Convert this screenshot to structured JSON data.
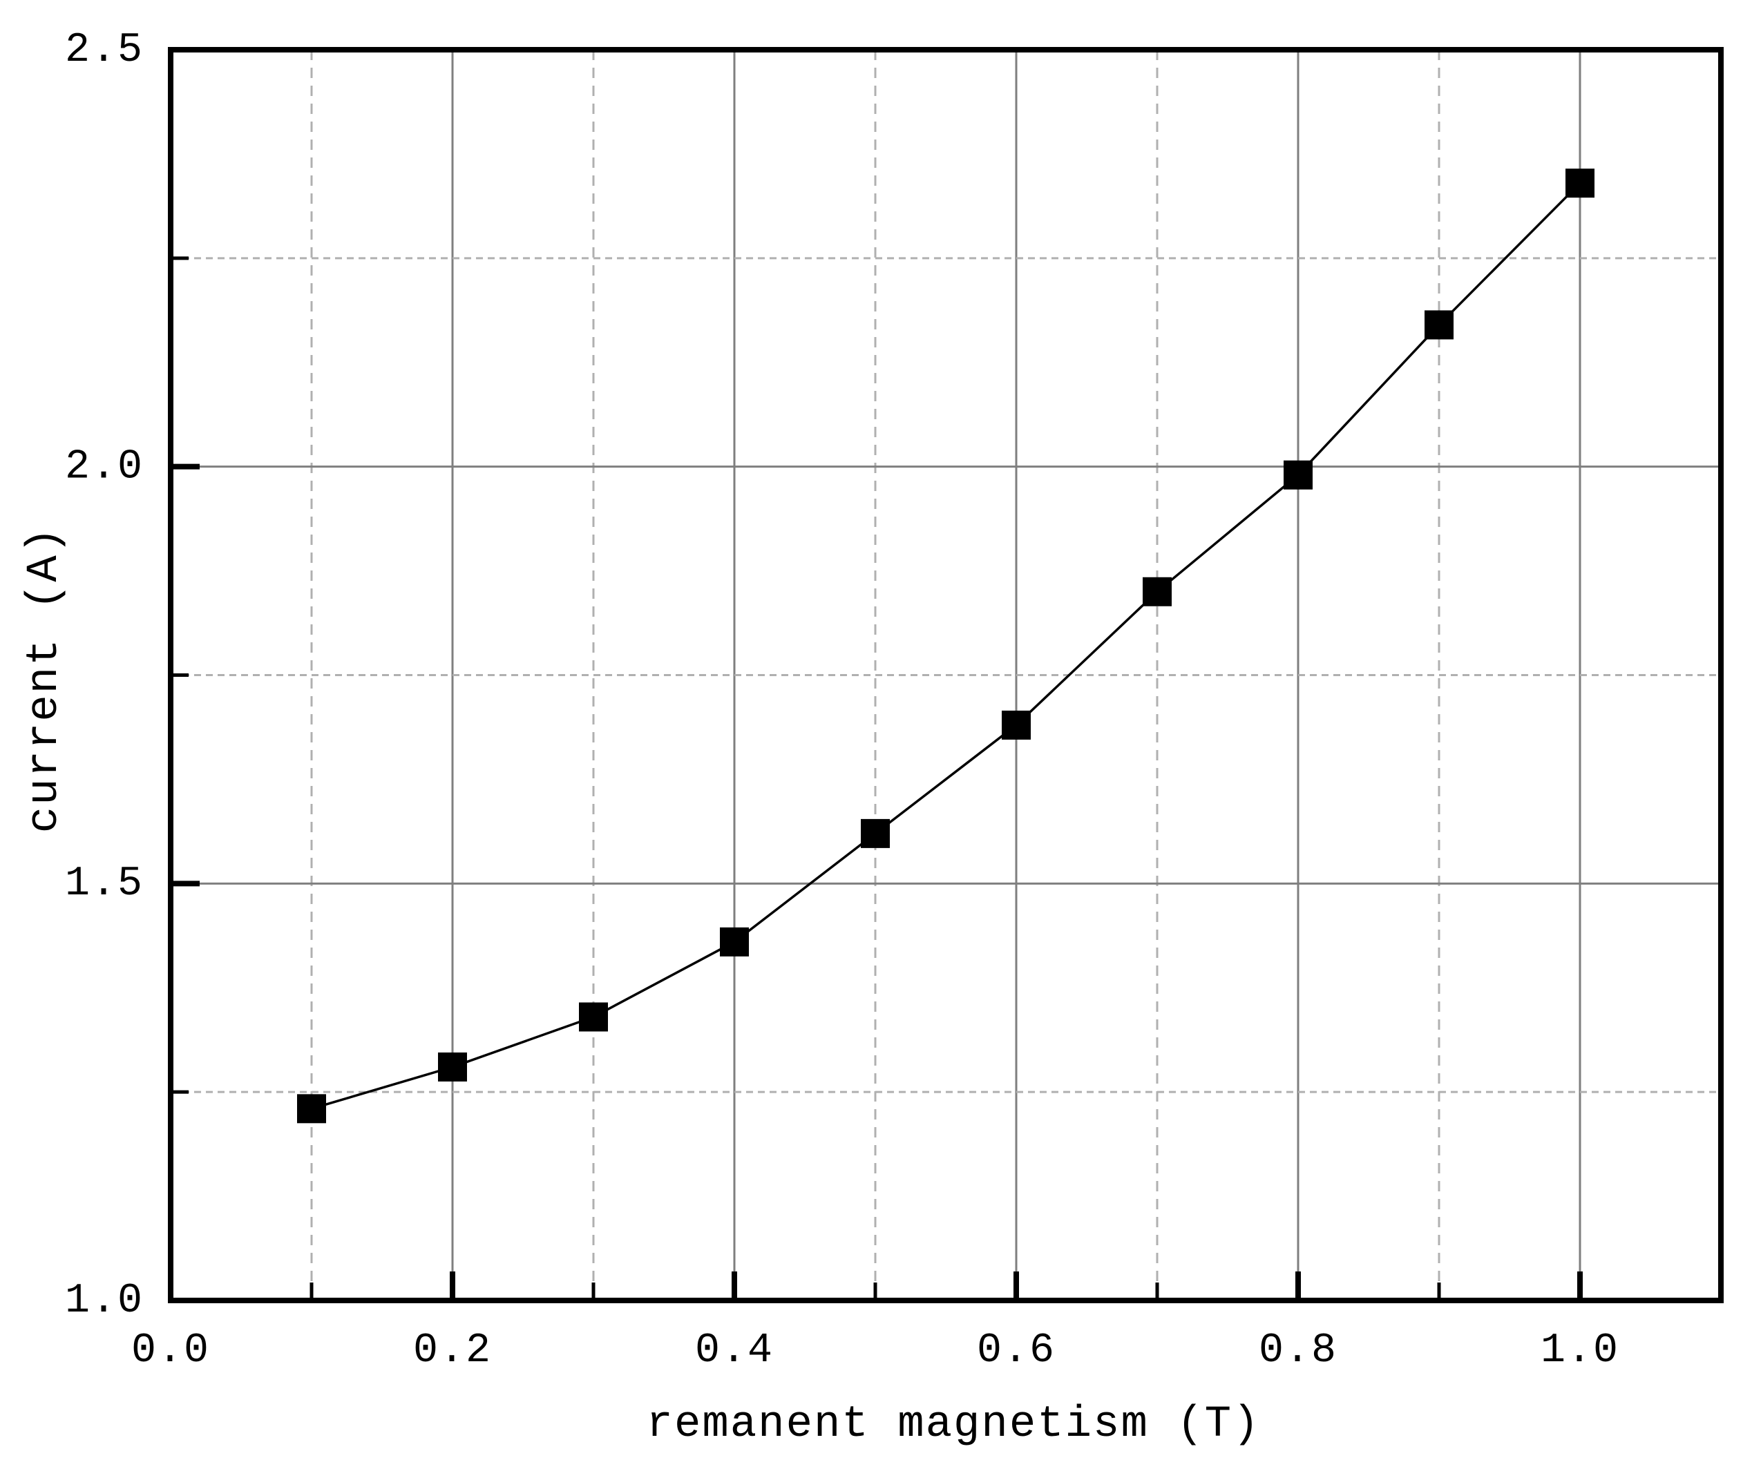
{
  "chart_data": {
    "type": "line",
    "title": "",
    "xlabel": "remanent magnetism (T)",
    "ylabel": "current (A)",
    "x": [
      0.1,
      0.2,
      0.3,
      0.4,
      0.5,
      0.6,
      0.7,
      0.8,
      0.9,
      1.0
    ],
    "series": [
      {
        "name": "current",
        "values": [
          1.23,
          1.28,
          1.34,
          1.43,
          1.56,
          1.69,
          1.85,
          1.99,
          2.17,
          2.34
        ]
      }
    ],
    "xlim": [
      0.0,
      1.1
    ],
    "ylim": [
      1.0,
      2.5
    ],
    "x_ticks": {
      "major_values": [
        0.0,
        0.2,
        0.4,
        0.6,
        0.8,
        1.0
      ],
      "major_labels": [
        "0.0",
        "0.2",
        "0.4",
        "0.6",
        "0.8",
        "1.0"
      ],
      "minor_values": [
        0.1,
        0.3,
        0.5,
        0.7,
        0.9
      ]
    },
    "y_ticks": {
      "major_values": [
        1.0,
        1.5,
        2.0,
        2.5
      ],
      "major_labels": [
        "1.0",
        "1.5",
        "2.0",
        "2.5"
      ],
      "minor_values": [
        1.25,
        1.75,
        2.25
      ]
    },
    "grid": {
      "x_solid": [
        0.2,
        0.4,
        0.6,
        0.8,
        1.0
      ],
      "x_dashed": [
        0.1,
        0.3,
        0.5,
        0.7,
        0.9
      ],
      "y_solid": [
        1.5,
        2.0
      ],
      "y_dashed": [
        1.25,
        1.75,
        2.25
      ]
    },
    "legend": "none",
    "marker": "square",
    "colors": {
      "line": "#000000",
      "marker": "#000000",
      "axis": "#000000",
      "text": "#000000",
      "grid_solid": "#7f7f7f",
      "grid_dashed": "#b0b0b0",
      "background": "#ffffff"
    }
  }
}
